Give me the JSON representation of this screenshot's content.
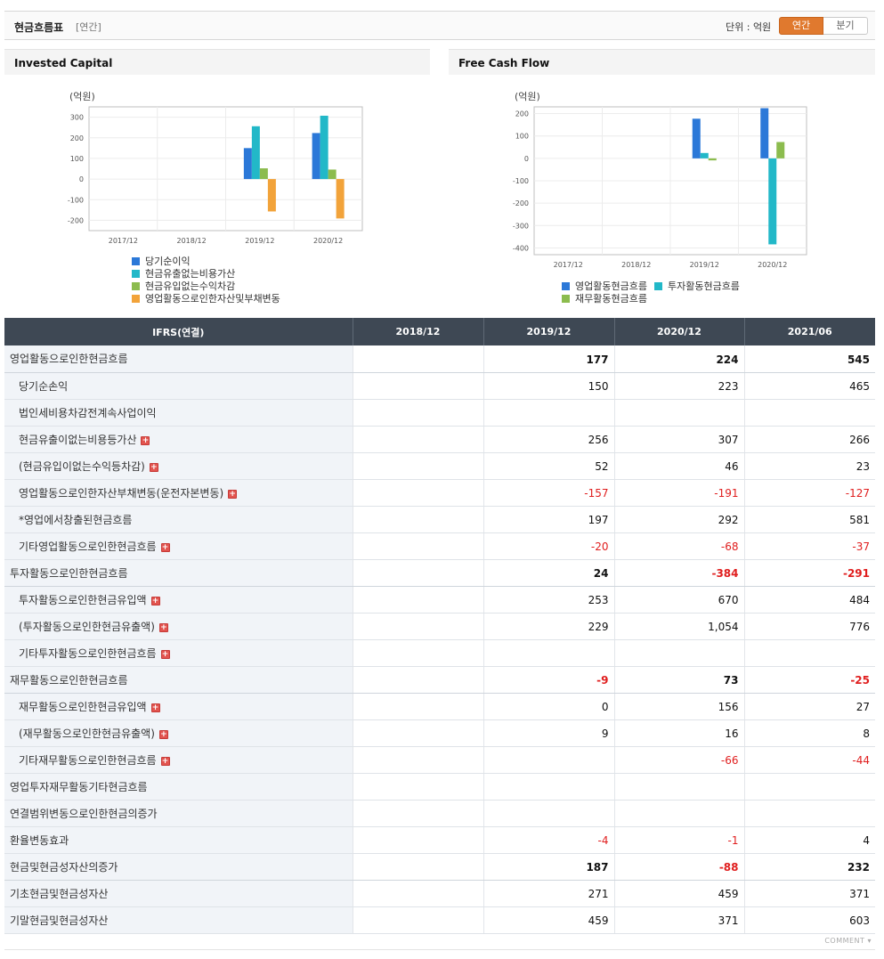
{
  "header": {
    "title": "현금흐름표",
    "sub": "[연간]",
    "unit": "단위 : 억원",
    "toggle_annual": "연간",
    "toggle_quarter": "분기"
  },
  "charts": {
    "invested_capital": {
      "title": "Invested Capital",
      "unit": "(억원)"
    },
    "free_cash_flow": {
      "title": "Free Cash Flow",
      "unit": "(억원)"
    }
  },
  "colors": {
    "blue": "#2b78d8",
    "cyan": "#22b8c8",
    "green": "#8cbc4e",
    "orange": "#f2a33a",
    "negative": "#e01e1e"
  },
  "chart_data": [
    {
      "type": "bar",
      "title": "Invested Capital",
      "ylabel": "(억원)",
      "categories": [
        "2017/12",
        "2018/12",
        "2019/12",
        "2020/12"
      ],
      "ylim": [
        -250,
        350
      ],
      "yticks": [
        300,
        200,
        100,
        0,
        -100,
        -200
      ],
      "series": [
        {
          "name": "당기순이익",
          "color": "#2b78d8",
          "values": [
            null,
            null,
            150,
            223
          ]
        },
        {
          "name": "현금유출없는비용가산",
          "color": "#22b8c8",
          "values": [
            null,
            null,
            256,
            307
          ]
        },
        {
          "name": "현금유입없는수익차감",
          "color": "#8cbc4e",
          "values": [
            null,
            null,
            52,
            46
          ]
        },
        {
          "name": "영업활동으로인한자산및부채변동",
          "color": "#f2a33a",
          "values": [
            null,
            null,
            -157,
            -191
          ]
        }
      ]
    },
    {
      "type": "bar",
      "title": "Free Cash Flow",
      "ylabel": "(억원)",
      "categories": [
        "2017/12",
        "2018/12",
        "2019/12",
        "2020/12"
      ],
      "ylim": [
        -430,
        230
      ],
      "yticks": [
        200,
        100,
        0,
        -100,
        -200,
        -300,
        -400
      ],
      "series": [
        {
          "name": "영업활동현금흐름",
          "color": "#2b78d8",
          "values": [
            null,
            null,
            177,
            224
          ]
        },
        {
          "name": "투자활동현금흐름",
          "color": "#22b8c8",
          "values": [
            null,
            null,
            24,
            -384
          ]
        },
        {
          "name": "재무활동현금흐름",
          "color": "#8cbc4e",
          "values": [
            null,
            null,
            -9,
            73
          ]
        }
      ]
    }
  ],
  "table": {
    "headers": [
      "IFRS(연결)",
      "2018/12",
      "2019/12",
      "2020/12",
      "2021/06"
    ],
    "rows": [
      {
        "label": "영업활동으로인한현금흐름",
        "level": 0,
        "major": true,
        "plus": false,
        "values": [
          "",
          "177",
          "224",
          "545"
        ]
      },
      {
        "label": "당기순손익",
        "level": 1,
        "major": false,
        "plus": false,
        "values": [
          "",
          "150",
          "223",
          "465"
        ]
      },
      {
        "label": "법인세비용차감전계속사업이익",
        "level": 1,
        "major": false,
        "plus": false,
        "values": [
          "",
          "",
          "",
          ""
        ]
      },
      {
        "label": "현금유출이없는비용등가산",
        "level": 1,
        "major": false,
        "plus": true,
        "values": [
          "",
          "256",
          "307",
          "266"
        ]
      },
      {
        "label": "(현금유입이없는수익등차감)",
        "level": 1,
        "major": false,
        "plus": true,
        "values": [
          "",
          "52",
          "46",
          "23"
        ]
      },
      {
        "label": "영업활동으로인한자산부채변동(운전자본변동)",
        "level": 1,
        "major": false,
        "plus": true,
        "values": [
          "",
          "-157",
          "-191",
          "-127"
        ]
      },
      {
        "label": "*영업에서창출된현금흐름",
        "level": 1,
        "major": false,
        "plus": false,
        "values": [
          "",
          "197",
          "292",
          "581"
        ]
      },
      {
        "label": "기타영업활동으로인한현금흐름",
        "level": 1,
        "major": false,
        "plus": true,
        "values": [
          "",
          "-20",
          "-68",
          "-37"
        ]
      },
      {
        "label": "투자활동으로인한현금흐름",
        "level": 0,
        "major": true,
        "plus": false,
        "values": [
          "",
          "24",
          "-384",
          "-291"
        ]
      },
      {
        "label": "투자활동으로인한현금유입액",
        "level": 1,
        "major": false,
        "plus": true,
        "values": [
          "",
          "253",
          "670",
          "484"
        ]
      },
      {
        "label": "(투자활동으로인한현금유출액)",
        "level": 1,
        "major": false,
        "plus": true,
        "values": [
          "",
          "229",
          "1,054",
          "776"
        ]
      },
      {
        "label": "기타투자활동으로인한현금흐름",
        "level": 1,
        "major": false,
        "plus": true,
        "values": [
          "",
          "",
          "",
          ""
        ]
      },
      {
        "label": "재무활동으로인한현금흐름",
        "level": 0,
        "major": true,
        "plus": false,
        "values": [
          "",
          "-9",
          "73",
          "-25"
        ]
      },
      {
        "label": "재무활동으로인한현금유입액",
        "level": 1,
        "major": false,
        "plus": true,
        "values": [
          "",
          "0",
          "156",
          "27"
        ]
      },
      {
        "label": "(재무활동으로인한현금유출액)",
        "level": 1,
        "major": false,
        "plus": true,
        "values": [
          "",
          "9",
          "16",
          "8"
        ]
      },
      {
        "label": "기타재무활동으로인한현금흐름",
        "level": 1,
        "major": false,
        "plus": true,
        "values": [
          "",
          "",
          "-66",
          "-44"
        ]
      },
      {
        "label": "영업투자재무활동기타현금흐름",
        "level": 0,
        "major": false,
        "plus": false,
        "values": [
          "",
          "",
          "",
          ""
        ]
      },
      {
        "label": "연결범위변동으로인한현금의증가",
        "level": 0,
        "major": false,
        "plus": false,
        "values": [
          "",
          "",
          "",
          ""
        ]
      },
      {
        "label": "환율변동효과",
        "level": 0,
        "major": false,
        "plus": false,
        "values": [
          "",
          "-4",
          "-1",
          "4"
        ]
      },
      {
        "label": "현금및현금성자산의증가",
        "level": 0,
        "major": true,
        "plus": false,
        "values": [
          "",
          "187",
          "-88",
          "232"
        ]
      },
      {
        "label": "기초현금및현금성자산",
        "level": 0,
        "major": false,
        "plus": false,
        "values": [
          "",
          "271",
          "459",
          "371"
        ]
      },
      {
        "label": "기말현금및현금성자산",
        "level": 0,
        "major": false,
        "plus": false,
        "values": [
          "",
          "459",
          "371",
          "603"
        ]
      }
    ]
  },
  "footer": {
    "comment": "COMMENT"
  }
}
